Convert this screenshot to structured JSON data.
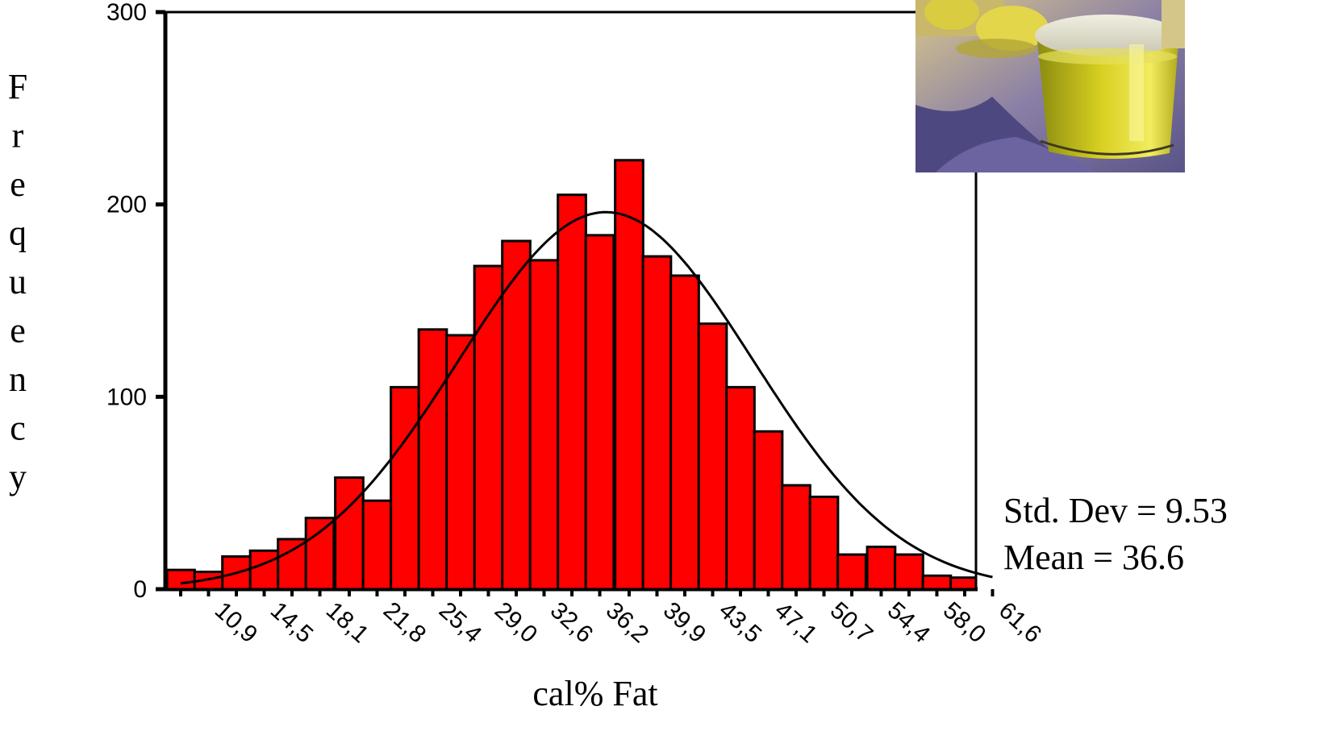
{
  "chart_data": {
    "type": "bar",
    "subtype": "histogram",
    "xlabel": "cal% Fat",
    "ylabel": "Frequency",
    "ylim": [
      0,
      300
    ],
    "y_ticks": [
      0,
      100,
      200,
      300
    ],
    "y_tick_labels": [
      "0",
      "100",
      "200",
      "300"
    ],
    "x_tick_labels": [
      "10,9",
      "14,5",
      "18,1",
      "21,8",
      "25,4",
      "29,0",
      "32,6",
      "36,2",
      "39,9",
      "43,5",
      "47,1",
      "50,7",
      "54,4",
      "58,0",
      "61,6"
    ],
    "bin_width": 1.81,
    "bin_centers": [
      9.1,
      10.9,
      12.7,
      14.5,
      16.3,
      18.1,
      20.0,
      21.8,
      23.6,
      25.4,
      27.2,
      29.0,
      30.8,
      32.6,
      34.4,
      36.2,
      38.1,
      39.9,
      41.7,
      43.5,
      45.3,
      47.1,
      48.9,
      50.7,
      52.5,
      54.4,
      56.2,
      58.0,
      59.8,
      61.6
    ],
    "values": [
      10,
      9,
      17,
      20,
      26,
      37,
      58,
      46,
      105,
      135,
      132,
      168,
      181,
      171,
      205,
      184,
      223,
      173,
      163,
      138,
      105,
      82,
      54,
      48,
      18,
      22,
      18,
      7,
      6,
      0
    ],
    "bar_color": "#ff0000",
    "grid": false,
    "normal_curve": {
      "mean": 36.6,
      "std_dev": 9.53,
      "peak": 196
    },
    "stats": {
      "std_dev_text": "Std. Dev = 9.53",
      "mean_text": "Mean = 36.6"
    }
  },
  "decor": {
    "photo": "olive-oil-glass-photo"
  }
}
